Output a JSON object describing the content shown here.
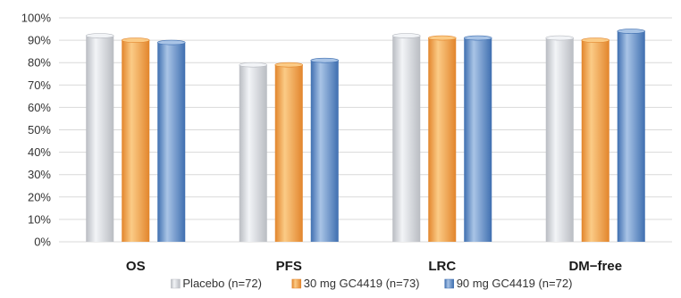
{
  "chart_data": {
    "type": "bar",
    "categories": [
      "OS",
      "PFS",
      "LRC",
      "DM−free"
    ],
    "series": [
      {
        "name": "Placebo (n=72)",
        "values": [
          92,
          79,
          92,
          91
        ],
        "colors": [
          "#f2f4f7",
          "#b9bcc2"
        ]
      },
      {
        "name": "30 mg GC4419 (n=73)",
        "values": [
          90,
          79,
          91,
          90
        ],
        "colors": [
          "#fbcb86",
          "#e2852c"
        ]
      },
      {
        "name": "90 mg GC4419 (n=72)",
        "values": [
          89,
          81,
          91,
          94
        ],
        "colors": [
          "#a9c4e6",
          "#3f6fb0"
        ]
      }
    ],
    "ylim": [
      0,
      100
    ],
    "yticks": [
      "0%",
      "10%",
      "20%",
      "30%",
      "40%",
      "50%",
      "60%",
      "70%",
      "80%",
      "90%",
      "100%"
    ],
    "grid": true,
    "legend_position": "bottom",
    "style": "3d-cylinder-bars"
  }
}
